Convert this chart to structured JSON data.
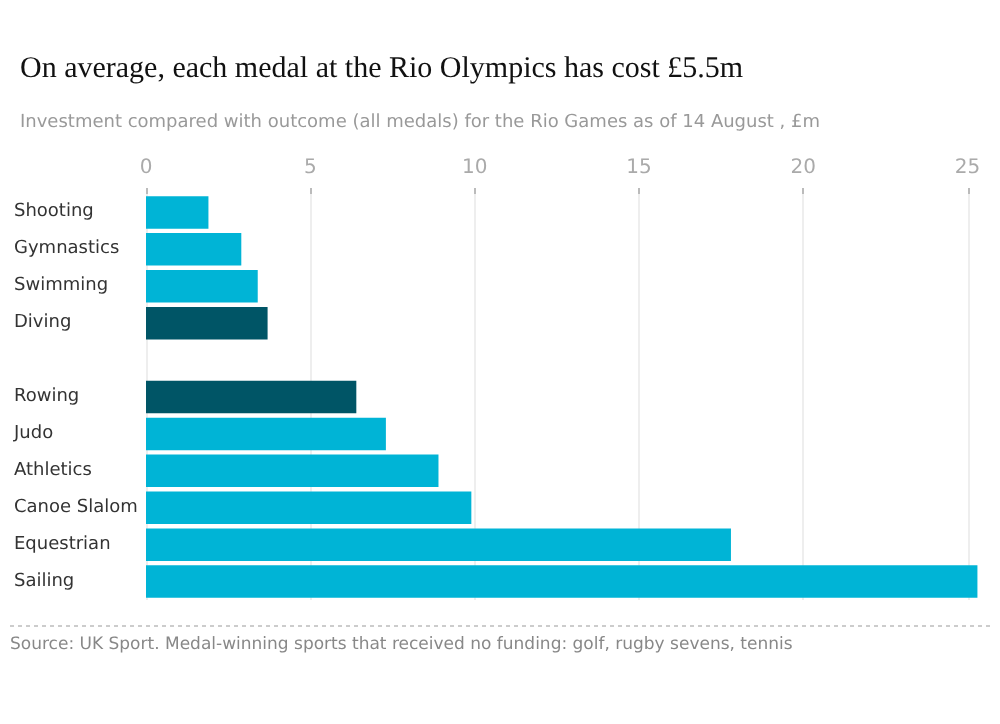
{
  "chart_data": {
    "type": "bar",
    "orientation": "horizontal",
    "title": "On average, each medal at the Rio Olympics has cost £5.5m",
    "subtitle": "Investment compared with outcome (all medals) for the Rio Games as of 14 August , £m",
    "categories": [
      "Shooting",
      "Gymnastics",
      "Swimming",
      "Diving",
      null,
      "Rowing",
      "Judo",
      "Athletics",
      "Canoe Slalom",
      "Equestrian",
      "Sailing"
    ],
    "values": [
      1.9,
      2.9,
      3.4,
      3.7,
      null,
      6.4,
      7.3,
      8.9,
      9.9,
      17.8,
      25.3
    ],
    "colors": [
      "#00b4d6",
      "#00b4d6",
      "#00b4d6",
      "#005566",
      null,
      "#005566",
      "#00b4d6",
      "#00b4d6",
      "#00b4d6",
      "#00b4d6",
      "#00b4d6"
    ],
    "xlim": [
      0,
      25.5
    ],
    "xticks": [
      0,
      5,
      10,
      15,
      20,
      25
    ],
    "grid": "x",
    "annotations": [
      "Source: UK Sport. Medal-winning sports that received no funding: golf, rugby sevens, tennis"
    ]
  }
}
